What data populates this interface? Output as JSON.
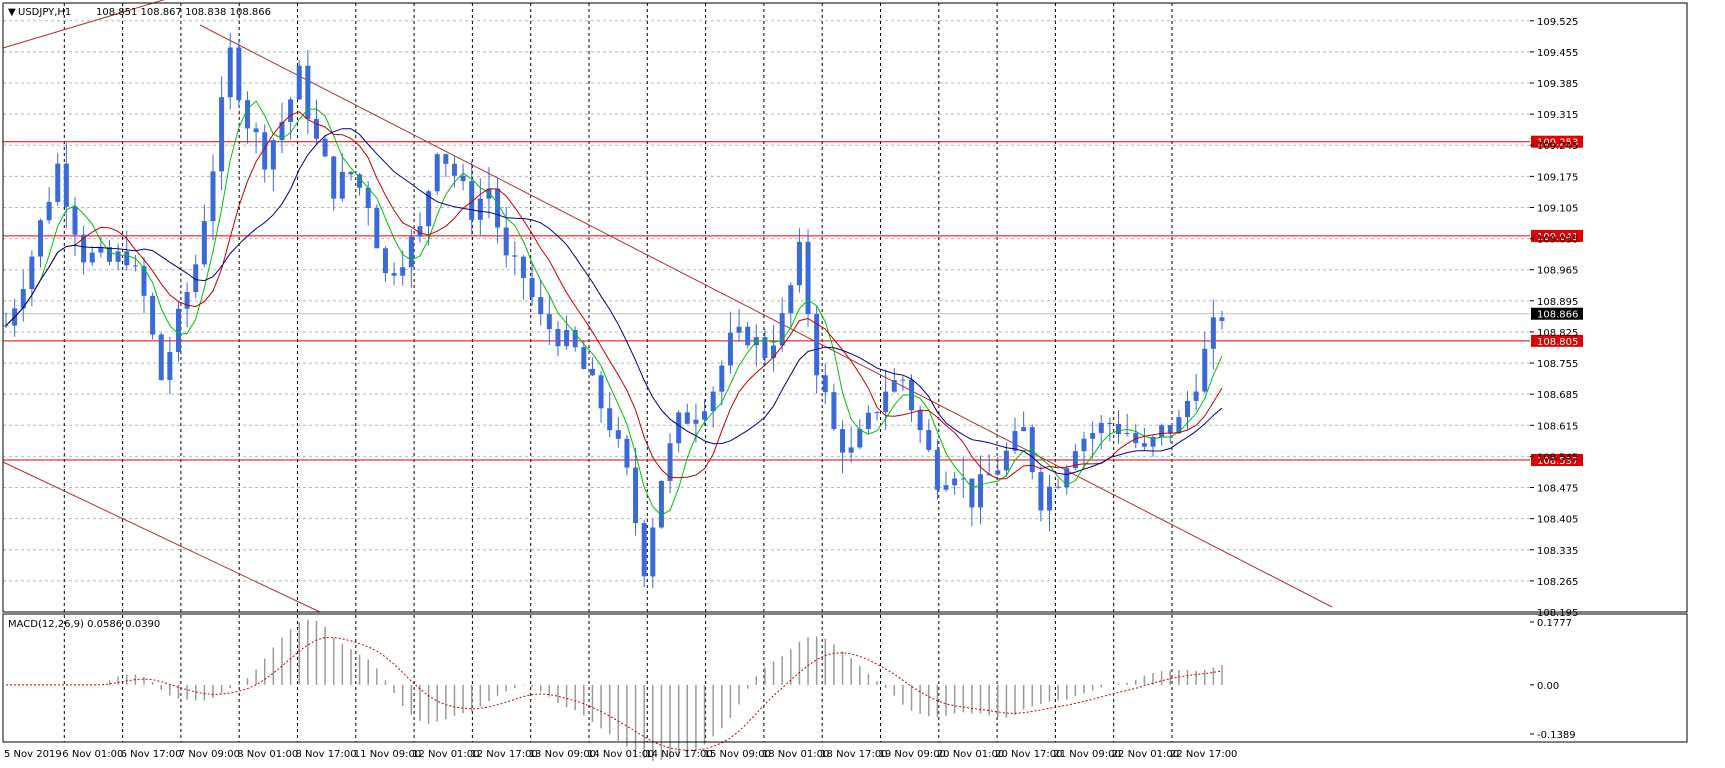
{
  "header": {
    "symbol_label": "USDJPY,H1",
    "ohlc_text": "108.851 108.867 108.838 108.866"
  },
  "macd_panel": {
    "label": "MACD(12,26,9) 0.0586 0.0390",
    "ticks": [
      "0.1777",
      "0.00",
      "-0.1389"
    ],
    "tick_values": [
      0.1777,
      0.0,
      -0.1389
    ]
  },
  "chart_data": {
    "type": "candlestick",
    "symbol": "USDJPY",
    "timeframe": "H1",
    "ylim": [
      108.195,
      109.565
    ],
    "price_ticks": [
      "109.525",
      "109.455",
      "109.385",
      "109.315",
      "109.245",
      "109.175",
      "109.105",
      "109.035",
      "108.965",
      "108.895",
      "108.825",
      "108.755",
      "108.685",
      "108.615",
      "108.545",
      "108.475",
      "108.405",
      "108.335",
      "108.265",
      "108.195"
    ],
    "price_tick_values": [
      109.525,
      109.455,
      109.385,
      109.315,
      109.245,
      109.175,
      109.105,
      109.035,
      108.965,
      108.895,
      108.825,
      108.755,
      108.685,
      108.615,
      108.545,
      108.475,
      108.405,
      108.335,
      108.265,
      108.195
    ],
    "time_labels": [
      "5 Nov 2019",
      "6 Nov 01:00",
      "6 Nov 17:00",
      "7 Nov 09:00",
      "8 Nov 01:00",
      "8 Nov 17:00",
      "11 Nov 09:00",
      "12 Nov 01:00",
      "12 Nov 17:00",
      "13 Nov 09:00",
      "14 Nov 01:00",
      "14 Nov 17:00",
      "15 Nov 09:00",
      "18 Nov 01:00",
      "18 Nov 17:00",
      "19 Nov 09:00",
      "20 Nov 01:00",
      "20 Nov 17:00",
      "21 Nov 09:00",
      "22 Nov 01:00",
      "22 Nov 17:00"
    ],
    "current_price": "108.866",
    "current_price_value": 108.866,
    "horizontal_levels": [
      "109.253",
      "109.041",
      "108.805",
      "108.537"
    ],
    "horizontal_level_values": [
      109.253,
      109.041,
      108.805,
      108.537
    ],
    "price_path": [
      [
        0,
        108.84
      ],
      [
        3,
        109.0
      ],
      [
        6,
        109.2
      ],
      [
        9,
        109.0
      ],
      [
        12,
        108.98
      ],
      [
        14,
        109.0
      ],
      [
        16,
        108.9
      ],
      [
        18,
        108.72
      ],
      [
        20,
        108.85
      ],
      [
        22,
        108.98
      ],
      [
        24,
        109.2
      ],
      [
        26,
        109.45
      ],
      [
        28,
        109.3
      ],
      [
        30,
        109.22
      ],
      [
        32,
        109.3
      ],
      [
        34,
        109.4
      ],
      [
        36,
        109.25
      ],
      [
        38,
        109.15
      ],
      [
        40,
        109.18
      ],
      [
        42,
        109.12
      ],
      [
        44,
        108.95
      ],
      [
        46,
        109.0
      ],
      [
        48,
        109.05
      ],
      [
        50,
        109.25
      ],
      [
        52,
        109.18
      ],
      [
        54,
        109.1
      ],
      [
        56,
        109.15
      ],
      [
        58,
        108.98
      ],
      [
        60,
        108.95
      ],
      [
        62,
        108.85
      ],
      [
        64,
        108.82
      ],
      [
        66,
        108.78
      ],
      [
        68,
        108.7
      ],
      [
        70,
        108.62
      ],
      [
        72,
        108.5
      ],
      [
        74,
        108.3
      ],
      [
        76,
        108.5
      ],
      [
        78,
        108.62
      ],
      [
        80,
        108.65
      ],
      [
        82,
        108.7
      ],
      [
        84,
        108.8
      ],
      [
        86,
        108.82
      ],
      [
        88,
        108.78
      ],
      [
        90,
        108.85
      ],
      [
        92,
        109.0
      ],
      [
        94,
        108.75
      ],
      [
        96,
        108.6
      ],
      [
        98,
        108.55
      ],
      [
        100,
        108.62
      ],
      [
        102,
        108.7
      ],
      [
        104,
        108.72
      ],
      [
        106,
        108.6
      ],
      [
        108,
        108.5
      ],
      [
        110,
        108.52
      ],
      [
        112,
        108.45
      ],
      [
        114,
        108.5
      ],
      [
        116,
        108.55
      ],
      [
        118,
        108.6
      ],
      [
        120,
        108.45
      ],
      [
        122,
        108.5
      ],
      [
        124,
        108.58
      ],
      [
        126,
        108.6
      ],
      [
        128,
        108.62
      ],
      [
        130,
        108.6
      ],
      [
        132,
        108.55
      ],
      [
        134,
        108.6
      ],
      [
        136,
        108.62
      ],
      [
        138,
        108.72
      ],
      [
        140,
        108.83
      ],
      [
        141,
        108.866
      ]
    ],
    "ma_fast_color": "#00c000",
    "ma_mid_color": "#c00000",
    "ma_slow_color": "#000080",
    "candle_color": "#3a6ad8",
    "level_color": "#e00000",
    "trend_color": "#b03030"
  }
}
